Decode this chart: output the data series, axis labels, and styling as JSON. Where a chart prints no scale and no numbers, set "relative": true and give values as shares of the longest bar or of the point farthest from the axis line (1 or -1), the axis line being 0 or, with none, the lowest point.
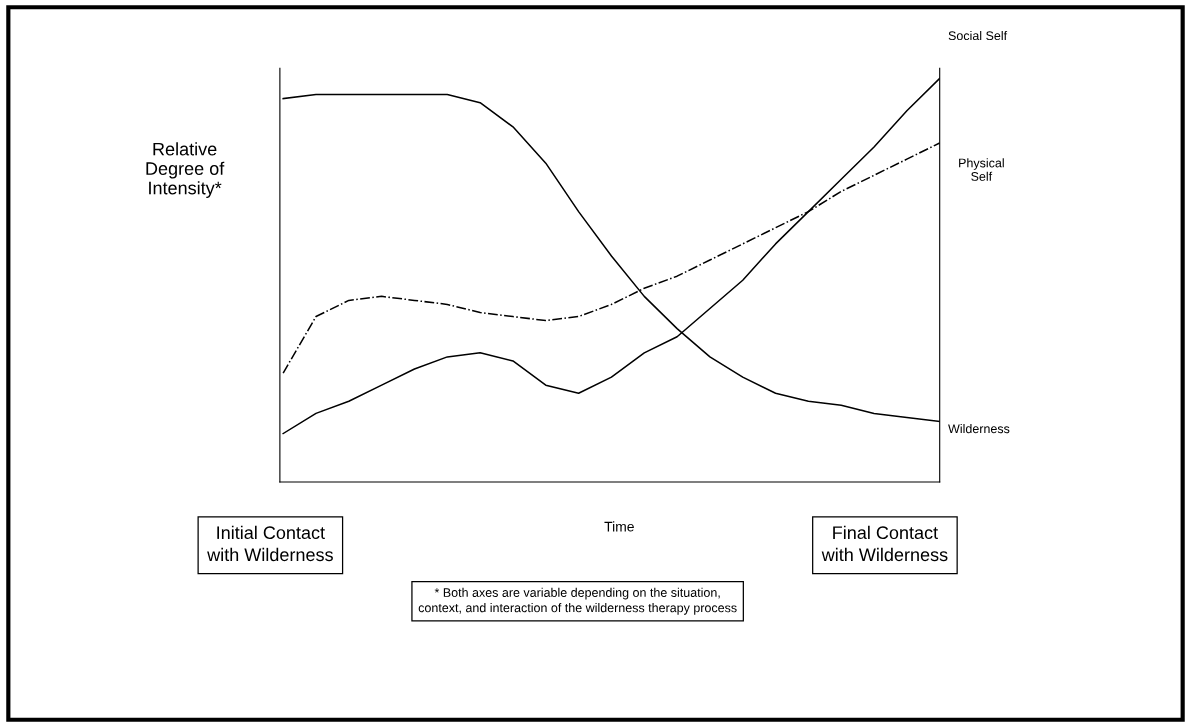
{
  "chart_data": {
    "type": "line",
    "relative": true,
    "xlabel": "Time",
    "ylabel": "Relative\nDegree of\nIntensity*",
    "categories": [
      null,
      null,
      null,
      null,
      null,
      null,
      null,
      null,
      null,
      null,
      null,
      null,
      null,
      null,
      null,
      null,
      null,
      null,
      null,
      null,
      null
    ],
    "series": [
      {
        "name": "Social Self",
        "color": "#000000",
        "line_style": "solid",
        "values": [
          0.12,
          0.17,
          0.2,
          0.24,
          0.28,
          0.31,
          0.32,
          0.3,
          0.24,
          0.22,
          0.26,
          0.32,
          0.36,
          0.43,
          0.5,
          0.59,
          0.67,
          0.75,
          0.83,
          0.92,
          1
        ]
      },
      {
        "name": "Physical\nSelf",
        "color": "#000000",
        "line_style": "dashdot",
        "values": [
          0.27,
          0.41,
          0.45,
          0.46,
          0.45,
          0.44,
          0.42,
          0.41,
          0.4,
          0.41,
          0.44,
          0.48,
          0.51,
          0.55,
          0.59,
          0.63,
          0.67,
          0.72,
          0.76,
          0.8,
          0.84
        ]
      },
      {
        "name": "Wilderness",
        "color": "#000000",
        "line_style": "solid",
        "values": [
          0.95,
          0.96,
          0.96,
          0.96,
          0.96,
          0.96,
          0.94,
          0.88,
          0.79,
          0.67,
          0.56,
          0.46,
          0.38,
          0.31,
          0.26,
          0.22,
          0.2,
          0.19,
          0.17,
          0.16,
          0.15
        ]
      }
    ],
    "annotations": [
      "Initial Contact\nwith Wilderness",
      "Final Contact\nwith Wilderness",
      "* Both axes are variable depending on the situation,\ncontext, and interaction of the wilderness therapy process"
    ],
    "grid": false,
    "legend": false
  }
}
